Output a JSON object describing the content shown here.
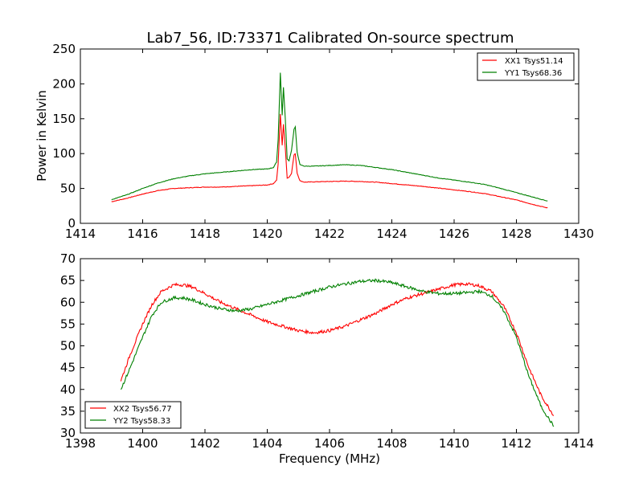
{
  "chart_data": [
    {
      "type": "line",
      "title": "Lab7_56, ID:73371 Calibrated On-source spectrum",
      "xlabel": "",
      "ylabel": "Power in Kelvin",
      "xlim": [
        1414,
        1430
      ],
      "ylim": [
        0,
        250
      ],
      "xticks": [
        1414,
        1416,
        1418,
        1420,
        1422,
        1424,
        1426,
        1428,
        1430
      ],
      "yticks": [
        0,
        50,
        100,
        150,
        200,
        250
      ],
      "legend": "top-right",
      "grid": false,
      "series": [
        {
          "name": "XX1 Tsys51.14",
          "color": "#ff0000",
          "x": [
            1415.0,
            1415.5,
            1416.0,
            1416.5,
            1417.0,
            1417.5,
            1418.0,
            1418.5,
            1419.0,
            1419.5,
            1420.0,
            1420.2,
            1420.3,
            1420.35,
            1420.42,
            1420.48,
            1420.52,
            1420.58,
            1420.64,
            1420.7,
            1420.78,
            1420.86,
            1420.9,
            1420.96,
            1421.05,
            1421.2,
            1421.5,
            1422.0,
            1422.5,
            1423.0,
            1423.5,
            1424.0,
            1424.5,
            1425.0,
            1425.5,
            1426.0,
            1426.5,
            1427.0,
            1427.5,
            1428.0,
            1428.5,
            1429.0
          ],
          "y": [
            31,
            36,
            42,
            47,
            50,
            51,
            52,
            52,
            53,
            54,
            55,
            57,
            62,
            85,
            157,
            112,
            142,
            108,
            65,
            66,
            72,
            98,
            100,
            72,
            61,
            59,
            59.5,
            60,
            60.5,
            60,
            59,
            57,
            55,
            53,
            50.5,
            48,
            45.5,
            42.5,
            38,
            33.5,
            27.5,
            22
          ]
        },
        {
          "name": "YY1 Tsys68.36",
          "color": "#008000",
          "x": [
            1415.0,
            1415.5,
            1416.0,
            1416.5,
            1417.0,
            1417.5,
            1418.0,
            1418.5,
            1419.0,
            1419.5,
            1420.0,
            1420.2,
            1420.3,
            1420.35,
            1420.42,
            1420.48,
            1420.52,
            1420.58,
            1420.64,
            1420.7,
            1420.78,
            1420.86,
            1420.9,
            1420.96,
            1421.05,
            1421.2,
            1421.5,
            1422.0,
            1422.5,
            1423.0,
            1423.5,
            1424.0,
            1424.5,
            1425.0,
            1425.5,
            1426.0,
            1426.5,
            1427.0,
            1427.5,
            1428.0,
            1428.5,
            1429.0
          ],
          "y": [
            34,
            41,
            50,
            58,
            64,
            68,
            71,
            73,
            75,
            77,
            78,
            80,
            88,
            120,
            216,
            155,
            195,
            150,
            92,
            90,
            105,
            135,
            138,
            102,
            84,
            82,
            82,
            83,
            84,
            83,
            80,
            77,
            73,
            69,
            65,
            62,
            59,
            55.5,
            50,
            44,
            38,
            32
          ]
        }
      ]
    },
    {
      "type": "line",
      "title": "",
      "xlabel": "Frequency (MHz)",
      "ylabel": "",
      "xlim": [
        1398,
        1414
      ],
      "ylim": [
        30,
        70
      ],
      "xticks": [
        1398,
        1400,
        1402,
        1404,
        1406,
        1408,
        1410,
        1412,
        1414
      ],
      "yticks": [
        30,
        35,
        40,
        45,
        50,
        55,
        60,
        65,
        70
      ],
      "legend": "bottom-left",
      "grid": false,
      "series": [
        {
          "name": "XX2 Tsys56.77",
          "color": "#ff0000",
          "x": [
            1399.3,
            1399.6,
            1400.0,
            1400.3,
            1400.6,
            1401.0,
            1401.3,
            1401.6,
            1402.0,
            1402.5,
            1403.0,
            1403.5,
            1404.0,
            1404.5,
            1405.0,
            1405.5,
            1406.0,
            1406.5,
            1407.0,
            1407.5,
            1408.0,
            1408.5,
            1409.0,
            1409.5,
            1410.0,
            1410.4,
            1410.8,
            1411.2,
            1411.6,
            1412.0,
            1412.4,
            1412.8,
            1413.2
          ],
          "y": [
            42,
            48,
            55,
            59.5,
            62.5,
            64,
            64,
            63.5,
            62,
            60,
            58.5,
            57,
            55.5,
            54.5,
            53.5,
            53,
            53.5,
            54.5,
            56,
            57.5,
            59.5,
            61,
            62,
            63,
            64,
            64.2,
            63.8,
            62.5,
            59,
            53,
            45,
            38.5,
            34
          ]
        },
        {
          "name": "YY2 Tsys58.33",
          "color": "#008000",
          "x": [
            1399.3,
            1399.6,
            1400.0,
            1400.3,
            1400.6,
            1401.0,
            1401.3,
            1401.6,
            1402.0,
            1402.5,
            1403.0,
            1403.5,
            1404.0,
            1404.5,
            1405.0,
            1405.5,
            1406.0,
            1406.5,
            1407.0,
            1407.5,
            1408.0,
            1408.5,
            1409.0,
            1409.5,
            1410.0,
            1410.4,
            1410.8,
            1411.2,
            1411.6,
            1412.0,
            1412.4,
            1412.8,
            1413.2
          ],
          "y": [
            40,
            45,
            52,
            57,
            60,
            61,
            61,
            60.5,
            59.5,
            58.5,
            58,
            58.5,
            59.5,
            60.5,
            61.5,
            62.5,
            63.5,
            64.2,
            64.8,
            65,
            64.5,
            63.5,
            62.5,
            62,
            62,
            62.2,
            62.5,
            61.5,
            58,
            52,
            43,
            36,
            31.5
          ]
        }
      ]
    }
  ]
}
